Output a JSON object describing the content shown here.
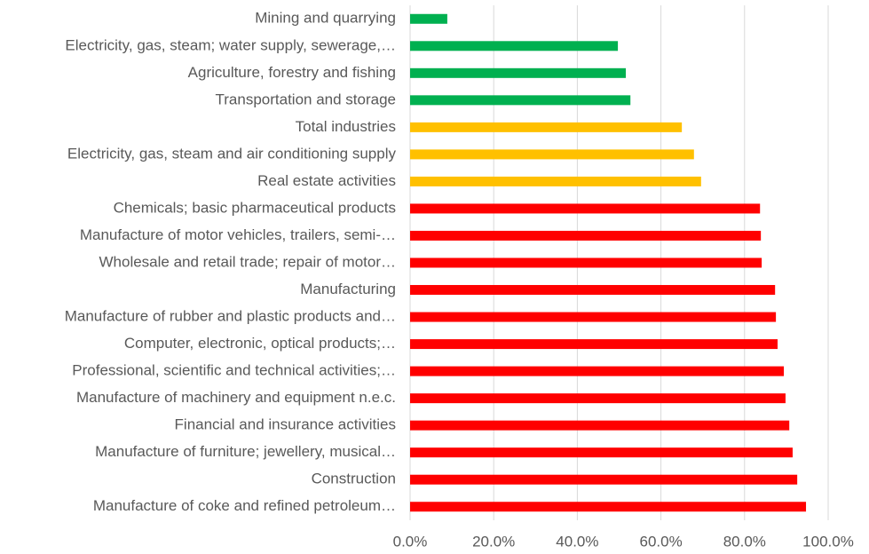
{
  "chart_data": {
    "type": "barh",
    "categories": [
      "Mining and quarrying",
      "Electricity, gas, steam; water supply, sewerage,…",
      "Agriculture, forestry and fishing",
      "Transportation and storage",
      "Total industries",
      "Electricity, gas, steam and air conditioning supply",
      "Real estate activities",
      "Chemicals; basic pharmaceutical products",
      "Manufacture of motor vehicles, trailers, semi-…",
      "Wholesale and retail trade; repair of motor…",
      "Manufacturing",
      "Manufacture of rubber and plastic products and…",
      "Computer, electronic, optical products;…",
      "Professional, scientific and technical activities;…",
      "Manufacture of machinery and equipment n.e.c.",
      "Financial and insurance activities",
      "Manufacture of furniture; jewellery, musical…",
      "Construction",
      "Manufacture of coke and refined petroleum…"
    ],
    "values": [
      8.9,
      49.7,
      51.6,
      52.7,
      65.0,
      67.9,
      69.6,
      83.7,
      83.9,
      84.1,
      87.3,
      87.5,
      87.9,
      89.4,
      89.8,
      90.7,
      91.5,
      92.6,
      94.7
    ],
    "colors": [
      "#00b050",
      "#00b050",
      "#00b050",
      "#00b050",
      "#ffc000",
      "#ffc000",
      "#ffc000",
      "#ff0000",
      "#ff0000",
      "#ff0000",
      "#ff0000",
      "#ff0000",
      "#ff0000",
      "#ff0000",
      "#ff0000",
      "#ff0000",
      "#ff0000",
      "#ff0000",
      "#ff0000"
    ],
    "xlim": [
      0,
      100
    ],
    "xticks": [
      {
        "value": 0,
        "label": "0.0%"
      },
      {
        "value": 20,
        "label": "20.0%"
      },
      {
        "value": 40,
        "label": "40.0%"
      },
      {
        "value": 60,
        "label": "60.0%"
      },
      {
        "value": 80,
        "label": "80.0%"
      },
      {
        "value": 100,
        "label": "100.0%"
      }
    ],
    "grid": true
  }
}
